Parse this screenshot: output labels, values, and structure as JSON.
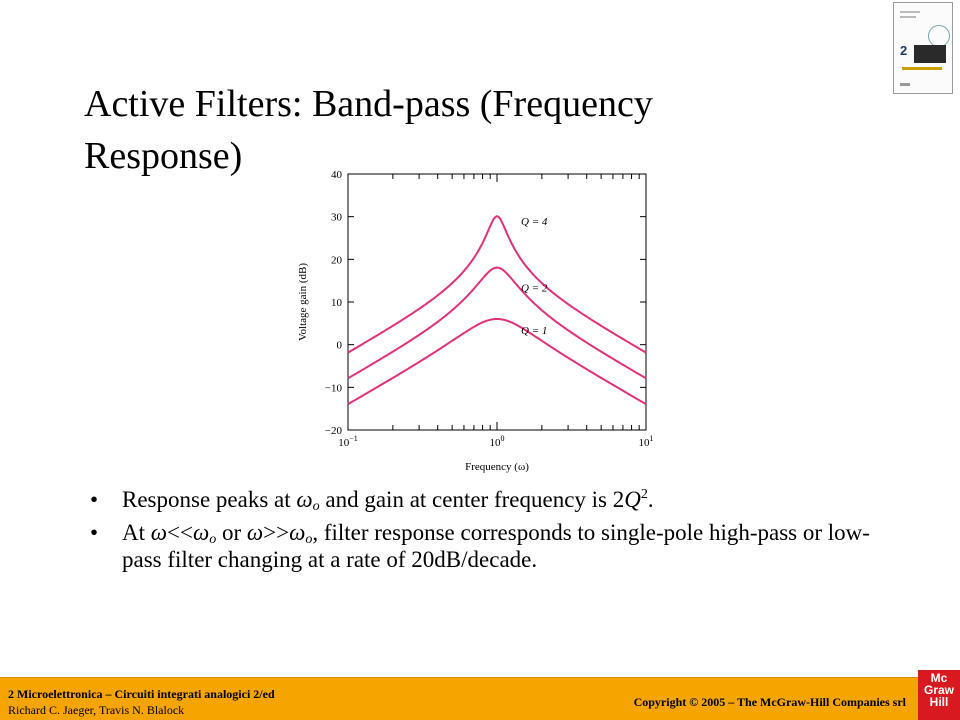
{
  "slide": {
    "title": "Active Filters: Band-pass (Frequency Response)"
  },
  "bullets": {
    "b1": {
      "t1": "Response peaks at ",
      "omega": "ω",
      "sub_o": "o",
      "t2": " and gain at center frequency is 2",
      "Q": "Q",
      "sup2": "2",
      "t3": "."
    },
    "b2": {
      "t1": "At ",
      "omega1": "ω",
      "lt": "<<",
      "omega2": "ω",
      "sub1": "o",
      "or": " or ",
      "omega3": "ω",
      "gt": ">>",
      "omega4": "ω",
      "sub2": "o",
      "t2": ", filter response corresponds to single-pole high-pass or low-pass filter changing at a rate of 20dB/decade."
    }
  },
  "footer": {
    "line1": "2 Microelettronica – Circuiti integrati analogici 2/ed",
    "line2": "Richard C. Jaeger, Travis N. Blalock",
    "copyright": "Copyright © 2005 – The McGraw-Hill Companies srl"
  },
  "logo": {
    "l1": "Mc",
    "l2": "Graw",
    "l3": "Hill"
  },
  "book": {
    "number": "2"
  },
  "chart_data": {
    "type": "line",
    "xlabel": "Frequency (ω)",
    "ylabel": "Voltage gain (dB)",
    "x_scale": "log",
    "xlim": [
      0.1,
      10
    ],
    "ylim": [
      -20,
      40
    ],
    "y_ticks": [
      "40",
      "30",
      "20",
      "10",
      "0",
      "−10",
      "−20"
    ],
    "y_tick_values": [
      40,
      30,
      20,
      10,
      0,
      -10,
      -20
    ],
    "x_tick_base": "10",
    "x_ticks": [
      {
        "value": 0.1,
        "exp": "−1"
      },
      {
        "value": 1,
        "exp": "0"
      },
      {
        "value": 10,
        "exp": "1"
      }
    ],
    "color": "#e0307a",
    "series": [
      {
        "label": "Q = 4",
        "Q": 4,
        "label_at": [
          1.45,
          28
        ]
      },
      {
        "label": "Q = 2",
        "Q": 2,
        "label_at": [
          1.45,
          12.5
        ]
      },
      {
        "label": "Q = 1",
        "Q": 1,
        "label_at": [
          1.45,
          2.5
        ]
      }
    ]
  }
}
